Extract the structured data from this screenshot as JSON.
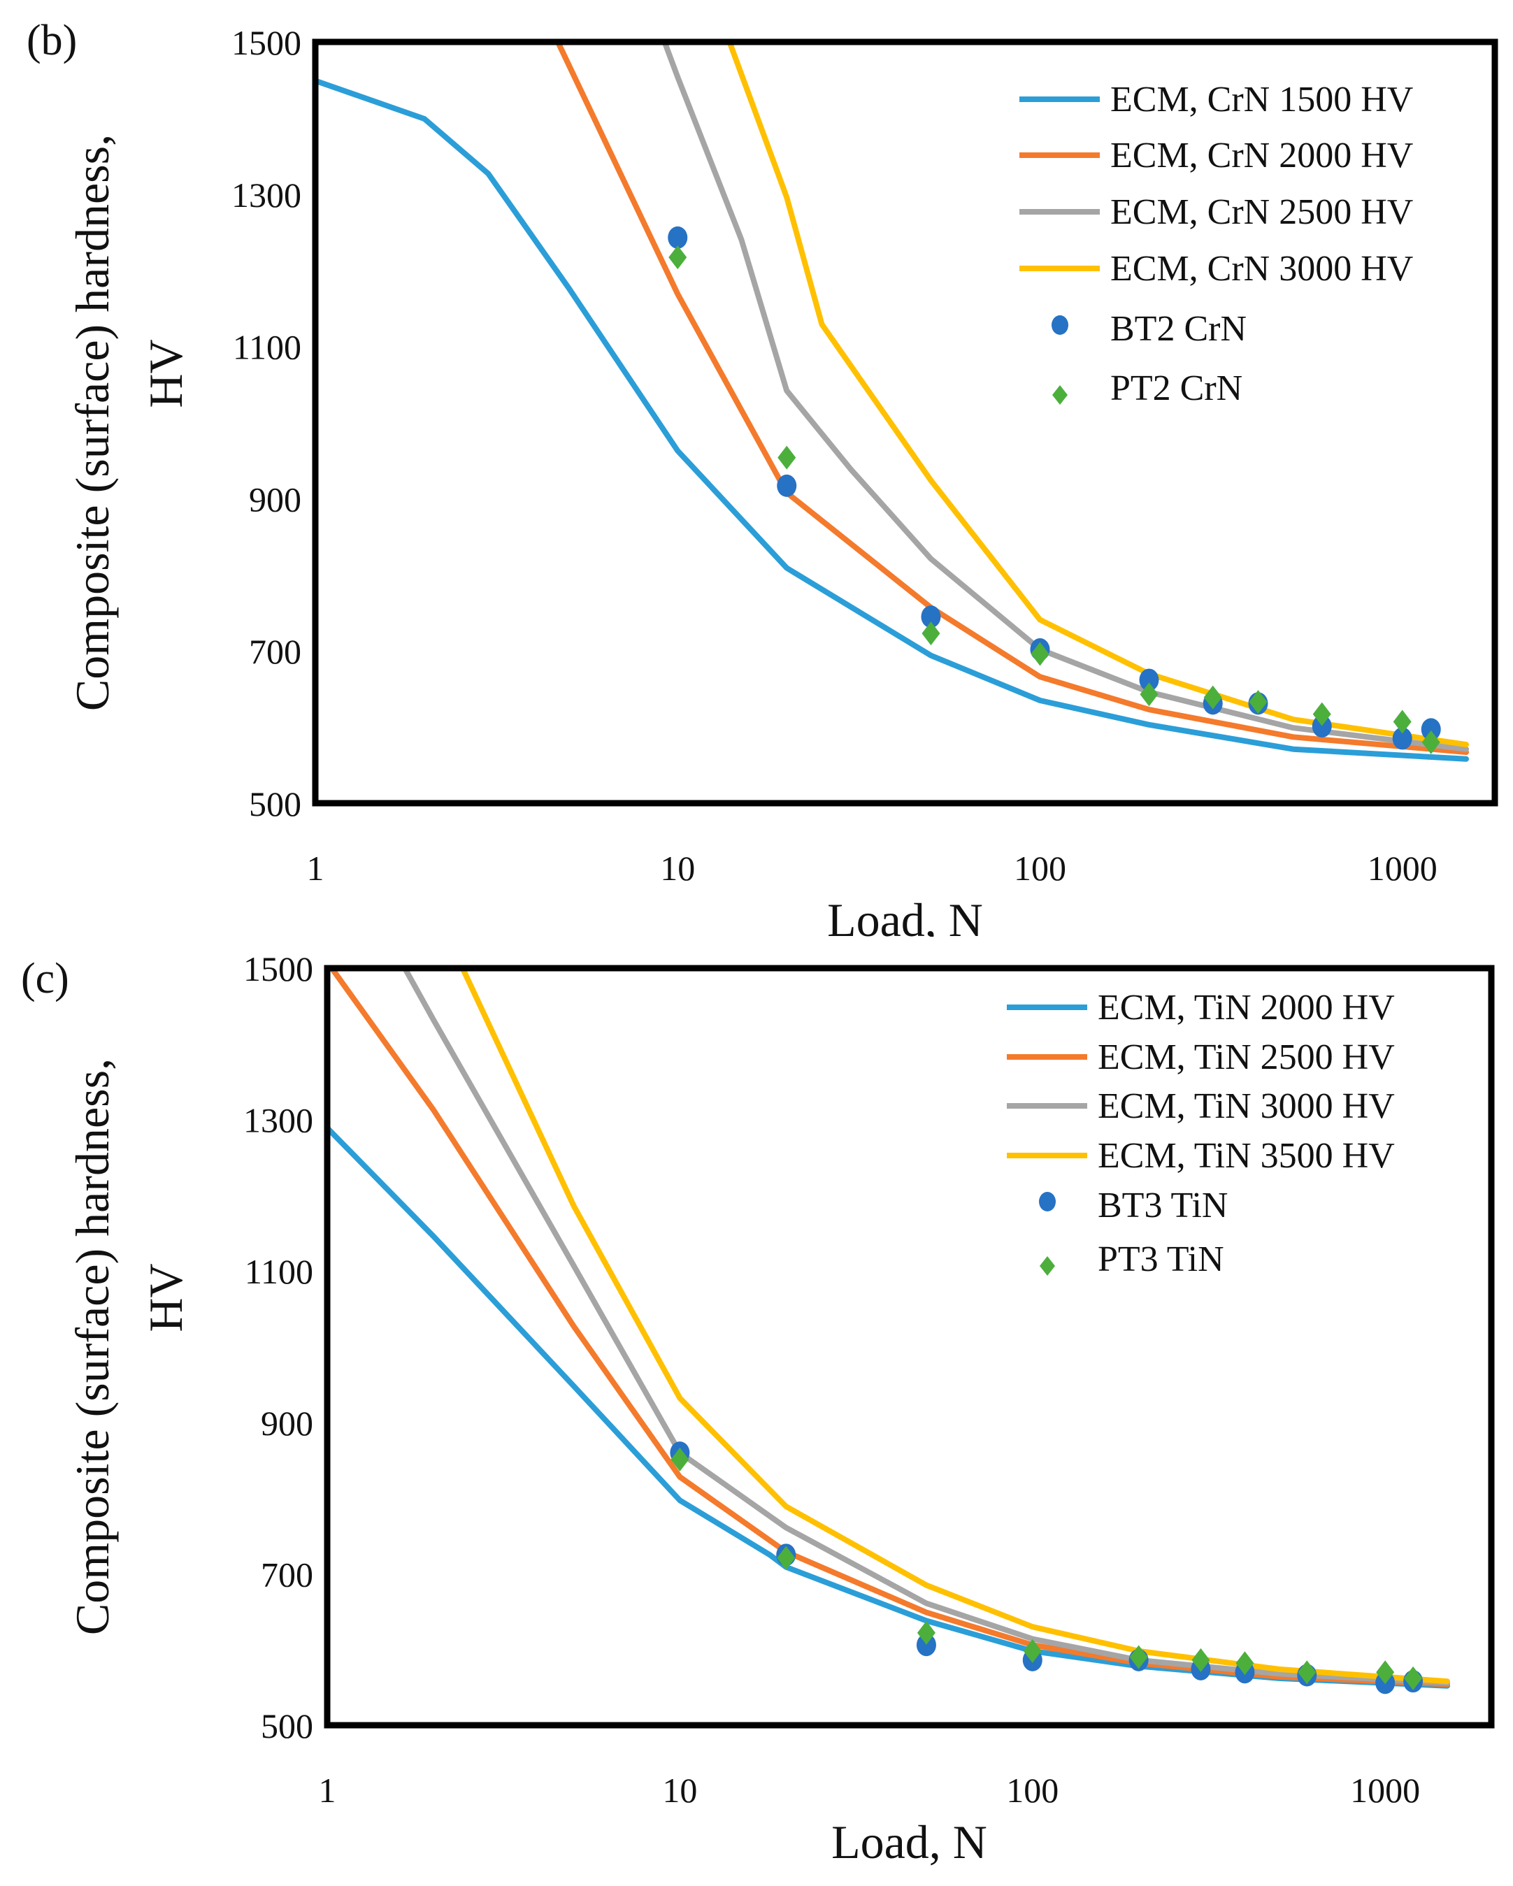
{
  "chart_data": [
    {
      "type": "line",
      "panel_label": "(b)",
      "xlabel": "Load, N",
      "ylabel_line1": "Composite (surface) hardness,",
      "ylabel_line2": "HV",
      "xscale": "log",
      "xlim": [
        1,
        1800
      ],
      "ylim": [
        500,
        1500
      ],
      "xticks": [
        "1",
        "10",
        "100",
        "1000"
      ],
      "xtick_values": [
        1,
        10,
        100,
        1000
      ],
      "yticks": [
        "500",
        "700",
        "900",
        "1100",
        "1300",
        "1500"
      ],
      "ytick_values": [
        500,
        700,
        900,
        1100,
        1300,
        1500
      ],
      "grid": false,
      "legend_position": "top-right",
      "series": [
        {
          "name": "ECM, CrN 1500 HV",
          "kind": "line",
          "color": "#2B9ED8",
          "x": [
            1,
            2,
            3,
            5,
            10,
            20,
            50,
            100,
            200,
            500,
            1500
          ],
          "y": [
            1449,
            1399,
            1327,
            1177,
            963,
            809,
            694,
            635,
            603,
            571,
            558
          ]
        },
        {
          "name": "ECM, CrN 2000 HV",
          "kind": "line",
          "color": "#F47A2C",
          "x": [
            4.67,
            10,
            20,
            50,
            100,
            200,
            500,
            1500
          ],
          "y": [
            1500,
            1169,
            908,
            757,
            666,
            623,
            587,
            567
          ]
        },
        {
          "name": "ECM, CrN 2500 HV",
          "kind": "line",
          "color": "#A5A5A5",
          "x": [
            9.2,
            10,
            15,
            20,
            30,
            50,
            100,
            200,
            500,
            1500
          ],
          "y": [
            1500,
            1454,
            1240,
            1042,
            939,
            821,
            702,
            646,
            599,
            571
          ]
        },
        {
          "name": "ECM, CrN 3000 HV",
          "kind": "line",
          "color": "#FFC000",
          "x": [
            13.9,
            20,
            25,
            50,
            100,
            200,
            500,
            1500
          ],
          "y": [
            1500,
            1296,
            1129,
            924,
            741,
            670,
            610,
            577
          ]
        },
        {
          "name": "BT2 CrN",
          "kind": "circle",
          "color": "#2672C4",
          "x": [
            10,
            20,
            50,
            100,
            200,
            300,
            400,
            600,
            1000,
            1200
          ],
          "y": [
            1243,
            917,
            745,
            702,
            662,
            631,
            631,
            601,
            585,
            597
          ]
        },
        {
          "name": "PT2 CrN",
          "kind": "diamond",
          "color": "#4CAF3C",
          "x": [
            10,
            20,
            50,
            100,
            200,
            300,
            400,
            600,
            1000,
            1200
          ],
          "y": [
            1217,
            954,
            723,
            696,
            643,
            639,
            633,
            617,
            607,
            580
          ]
        }
      ]
    },
    {
      "type": "line",
      "panel_label": "(c)",
      "xlabel": "Load, N",
      "ylabel_line1": "Composite (surface) hardness,",
      "ylabel_line2": "HV",
      "xscale": "log",
      "xlim": [
        1,
        2000
      ],
      "ylim": [
        500,
        1500
      ],
      "xticks": [
        "1",
        "10",
        "100",
        "1000"
      ],
      "xtick_values": [
        1,
        10,
        100,
        1000
      ],
      "yticks": [
        "500",
        "700",
        "900",
        "1100",
        "1300",
        "1500"
      ],
      "ytick_values": [
        500,
        700,
        900,
        1100,
        1300,
        1500
      ],
      "grid": false,
      "legend_position": "top-right",
      "series": [
        {
          "name": "ECM, TiN 2000 HV",
          "kind": "line",
          "color": "#2B9ED8",
          "x": [
            1,
            2,
            5,
            10,
            18,
            20,
            50,
            100,
            200,
            500,
            1500
          ],
          "y": [
            1289,
            1146,
            948,
            797,
            725,
            709,
            638,
            598,
            578,
            562,
            552
          ]
        },
        {
          "name": "ECM, TiN 2500 HV",
          "kind": "line",
          "color": "#F47A2C",
          "x": [
            1.03,
            2,
            5,
            10,
            20,
            50,
            100,
            200,
            500,
            1500
          ],
          "y": [
            1500,
            1313,
            1027,
            828,
            729,
            649,
            606,
            582,
            564,
            554
          ]
        },
        {
          "name": "ECM, TiN 3000 HV",
          "kind": "line",
          "color": "#A5A5A5",
          "x": [
            1.66,
            2,
            5,
            10,
            20,
            50,
            100,
            200,
            500,
            1500
          ],
          "y": [
            1500,
            1432,
            1107,
            860,
            761,
            661,
            614,
            586,
            568,
            556
          ]
        },
        {
          "name": "ECM, TiN 3500 HV",
          "kind": "line",
          "color": "#FFC000",
          "x": [
            2.42,
            5,
            10,
            20,
            50,
            100,
            200,
            500,
            1500
          ],
          "y": [
            1500,
            1186,
            932,
            789,
            685,
            630,
            598,
            574,
            558
          ]
        },
        {
          "name": "BT3 TiN",
          "kind": "circle",
          "color": "#2672C4",
          "x": [
            10,
            20,
            50,
            100,
            200,
            300,
            400,
            600,
            1000,
            1200
          ],
          "y": [
            860,
            725,
            606,
            586,
            586,
            574,
            570,
            566,
            556,
            558
          ]
        },
        {
          "name": "PT3 TiN",
          "kind": "diamond",
          "color": "#4CAF3C",
          "x": [
            10,
            20,
            50,
            100,
            200,
            300,
            400,
            600,
            1000,
            1200
          ],
          "y": [
            851,
            721,
            622,
            598,
            590,
            586,
            582,
            570,
            570,
            562
          ]
        }
      ]
    }
  ]
}
